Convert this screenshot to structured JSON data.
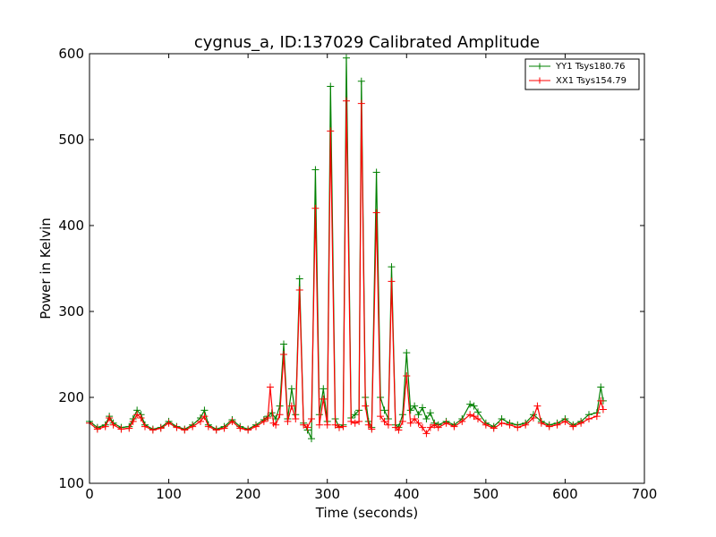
{
  "chart_data": {
    "type": "line",
    "title": "cygnus_a, ID:137029 Calibrated Amplitude",
    "xlabel": "Time (seconds)",
    "ylabel": "Power in Kelvin",
    "xlim": [
      0,
      700
    ],
    "ylim": [
      100,
      600
    ],
    "x_ticks": [
      "0",
      "100",
      "200",
      "300",
      "400",
      "500",
      "600",
      "700"
    ],
    "y_ticks": [
      "100",
      "200",
      "300",
      "400",
      "500",
      "600"
    ],
    "grid": false,
    "legend_position": "top-right",
    "marker": "+",
    "series": [
      {
        "name": "YY1 Tsys180.76",
        "color": "#008000",
        "points": [
          [
            0,
            172
          ],
          [
            10,
            165
          ],
          [
            20,
            168
          ],
          [
            25,
            178
          ],
          [
            30,
            170
          ],
          [
            40,
            165
          ],
          [
            50,
            166
          ],
          [
            55,
            175
          ],
          [
            60,
            185
          ],
          [
            65,
            180
          ],
          [
            70,
            168
          ],
          [
            80,
            163
          ],
          [
            90,
            165
          ],
          [
            100,
            172
          ],
          [
            110,
            166
          ],
          [
            120,
            163
          ],
          [
            130,
            168
          ],
          [
            140,
            176
          ],
          [
            145,
            185
          ],
          [
            150,
            168
          ],
          [
            160,
            163
          ],
          [
            170,
            166
          ],
          [
            180,
            174
          ],
          [
            190,
            166
          ],
          [
            200,
            163
          ],
          [
            210,
            168
          ],
          [
            220,
            174
          ],
          [
            225,
            178
          ],
          [
            230,
            182
          ],
          [
            235,
            175
          ],
          [
            240,
            190
          ],
          [
            245,
            262
          ],
          [
            250,
            175
          ],
          [
            255,
            210
          ],
          [
            260,
            180
          ],
          [
            265,
            338
          ],
          [
            270,
            170
          ],
          [
            275,
            162
          ],
          [
            280,
            152
          ],
          [
            285,
            465
          ],
          [
            290,
            180
          ],
          [
            295,
            210
          ],
          [
            300,
            172
          ],
          [
            304,
            562
          ],
          [
            310,
            175
          ],
          [
            315,
            165
          ],
          [
            320,
            168
          ],
          [
            324,
            595
          ],
          [
            330,
            176
          ],
          [
            335,
            180
          ],
          [
            340,
            185
          ],
          [
            343,
            568
          ],
          [
            348,
            200
          ],
          [
            352,
            172
          ],
          [
            356,
            165
          ],
          [
            362,
            462
          ],
          [
            367,
            200
          ],
          [
            372,
            185
          ],
          [
            377,
            175
          ],
          [
            381,
            352
          ],
          [
            386,
            168
          ],
          [
            390,
            165
          ],
          [
            395,
            180
          ],
          [
            400,
            252
          ],
          [
            405,
            185
          ],
          [
            410,
            190
          ],
          [
            415,
            180
          ],
          [
            420,
            188
          ],
          [
            425,
            175
          ],
          [
            430,
            182
          ],
          [
            435,
            170
          ],
          [
            440,
            168
          ],
          [
            450,
            172
          ],
          [
            460,
            168
          ],
          [
            470,
            175
          ],
          [
            480,
            192
          ],
          [
            485,
            190
          ],
          [
            490,
            183
          ],
          [
            500,
            170
          ],
          [
            510,
            166
          ],
          [
            520,
            175
          ],
          [
            530,
            170
          ],
          [
            540,
            168
          ],
          [
            550,
            170
          ],
          [
            560,
            180
          ],
          [
            570,
            172
          ],
          [
            580,
            168
          ],
          [
            590,
            170
          ],
          [
            600,
            175
          ],
          [
            610,
            168
          ],
          [
            620,
            172
          ],
          [
            630,
            180
          ],
          [
            640,
            182
          ],
          [
            645,
            212
          ],
          [
            648,
            196
          ]
        ]
      },
      {
        "name": "XX1 Tsys154.79",
        "color": "#ff0000",
        "points": [
          [
            0,
            170
          ],
          [
            10,
            163
          ],
          [
            20,
            166
          ],
          [
            25,
            176
          ],
          [
            30,
            168
          ],
          [
            40,
            163
          ],
          [
            50,
            164
          ],
          [
            55,
            172
          ],
          [
            60,
            180
          ],
          [
            65,
            176
          ],
          [
            70,
            166
          ],
          [
            80,
            162
          ],
          [
            90,
            164
          ],
          [
            100,
            170
          ],
          [
            110,
            165
          ],
          [
            120,
            162
          ],
          [
            130,
            166
          ],
          [
            140,
            172
          ],
          [
            145,
            178
          ],
          [
            150,
            166
          ],
          [
            160,
            162
          ],
          [
            170,
            164
          ],
          [
            180,
            172
          ],
          [
            190,
            164
          ],
          [
            200,
            162
          ],
          [
            210,
            166
          ],
          [
            220,
            172
          ],
          [
            225,
            176
          ],
          [
            228,
            212
          ],
          [
            232,
            170
          ],
          [
            235,
            168
          ],
          [
            240,
            180
          ],
          [
            245,
            250
          ],
          [
            250,
            172
          ],
          [
            255,
            190
          ],
          [
            260,
            175
          ],
          [
            265,
            325
          ],
          [
            270,
            168
          ],
          [
            275,
            165
          ],
          [
            280,
            175
          ],
          [
            285,
            420
          ],
          [
            290,
            168
          ],
          [
            295,
            198
          ],
          [
            300,
            168
          ],
          [
            304,
            510
          ],
          [
            310,
            168
          ],
          [
            315,
            165
          ],
          [
            320,
            166
          ],
          [
            324,
            545
          ],
          [
            330,
            172
          ],
          [
            335,
            170
          ],
          [
            340,
            172
          ],
          [
            343,
            542
          ],
          [
            348,
            190
          ],
          [
            352,
            168
          ],
          [
            356,
            163
          ],
          [
            362,
            415
          ],
          [
            367,
            178
          ],
          [
            372,
            172
          ],
          [
            377,
            168
          ],
          [
            381,
            335
          ],
          [
            386,
            165
          ],
          [
            390,
            162
          ],
          [
            395,
            172
          ],
          [
            400,
            225
          ],
          [
            405,
            170
          ],
          [
            410,
            175
          ],
          [
            415,
            170
          ],
          [
            420,
            165
          ],
          [
            425,
            158
          ],
          [
            430,
            165
          ],
          [
            435,
            168
          ],
          [
            440,
            165
          ],
          [
            450,
            170
          ],
          [
            460,
            166
          ],
          [
            470,
            172
          ],
          [
            480,
            180
          ],
          [
            485,
            178
          ],
          [
            490,
            175
          ],
          [
            500,
            168
          ],
          [
            510,
            164
          ],
          [
            520,
            170
          ],
          [
            530,
            168
          ],
          [
            540,
            165
          ],
          [
            550,
            168
          ],
          [
            560,
            176
          ],
          [
            565,
            190
          ],
          [
            570,
            170
          ],
          [
            580,
            166
          ],
          [
            590,
            168
          ],
          [
            600,
            172
          ],
          [
            610,
            166
          ],
          [
            620,
            170
          ],
          [
            630,
            175
          ],
          [
            640,
            178
          ],
          [
            645,
            196
          ],
          [
            648,
            186
          ]
        ]
      }
    ]
  }
}
